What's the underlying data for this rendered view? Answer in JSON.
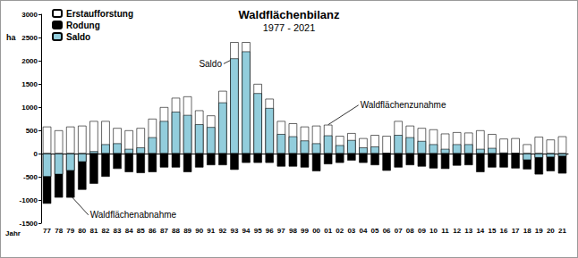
{
  "chart_data": {
    "type": "bar",
    "title": "Waldflächenbilanz",
    "subtitle": "1977 - 2021",
    "x_label": "Jahr",
    "y_label": "ha",
    "categories": [
      "77",
      "78",
      "79",
      "80",
      "81",
      "82",
      "83",
      "84",
      "85",
      "86",
      "87",
      "88",
      "89",
      "90",
      "91",
      "92",
      "93",
      "94",
      "95",
      "96",
      "97",
      "98",
      "99",
      "00",
      "01",
      "02",
      "03",
      "04",
      "05",
      "06",
      "07",
      "08",
      "09",
      "10",
      "11",
      "12",
      "13",
      "14",
      "15",
      "16",
      "17",
      "18",
      "19",
      "20",
      "21"
    ],
    "series": [
      {
        "name": "Erstaufforstung",
        "color": "#ffffff",
        "values": [
          580,
          500,
          580,
          600,
          700,
          700,
          550,
          500,
          550,
          750,
          1000,
          1200,
          1230,
          930,
          820,
          1350,
          2400,
          2400,
          1500,
          1180,
          700,
          650,
          580,
          600,
          620,
          380,
          440,
          330,
          400,
          380,
          700,
          600,
          550,
          520,
          430,
          460,
          450,
          500,
          420,
          320,
          330,
          200,
          360,
          300,
          370
        ]
      },
      {
        "name": "Rodung",
        "color": "#000000",
        "values": [
          -1080,
          -950,
          -950,
          -780,
          -650,
          -500,
          -330,
          -400,
          -420,
          -400,
          -300,
          -300,
          -400,
          -300,
          -250,
          -250,
          -350,
          -200,
          -200,
          -200,
          -280,
          -280,
          -300,
          -380,
          -230,
          -200,
          -150,
          -200,
          -250,
          -370,
          -300,
          -250,
          -280,
          -320,
          -330,
          -260,
          -250,
          -400,
          -300,
          -300,
          -320,
          -340,
          -450,
          -380,
          -430
        ]
      },
      {
        "name": "Saldo",
        "color": "#92cddc",
        "values": [
          -500,
          -450,
          -370,
          -180,
          50,
          200,
          220,
          100,
          130,
          350,
          700,
          900,
          830,
          630,
          570,
          1100,
          2050,
          2200,
          1300,
          980,
          420,
          370,
          280,
          220,
          390,
          180,
          290,
          130,
          150,
          10,
          400,
          350,
          270,
          200,
          100,
          200,
          200,
          100,
          120,
          20,
          10,
          -140,
          -90,
          -80,
          -60
        ]
      }
    ],
    "annotations": [
      {
        "text": "Saldo",
        "category": "93",
        "value": 2050
      },
      {
        "text": "Waldflächenzunahme",
        "category": "01",
        "value": 620
      },
      {
        "text": "Waldflächenabnahme",
        "category": "79",
        "value": -900
      }
    ],
    "ylim": [
      -1500,
      3000
    ],
    "yticks": [
      -1500,
      -1000,
      -500,
      0,
      500,
      1000,
      1500,
      2000,
      2500,
      3000
    ],
    "grid": false,
    "legend": "upper left"
  }
}
